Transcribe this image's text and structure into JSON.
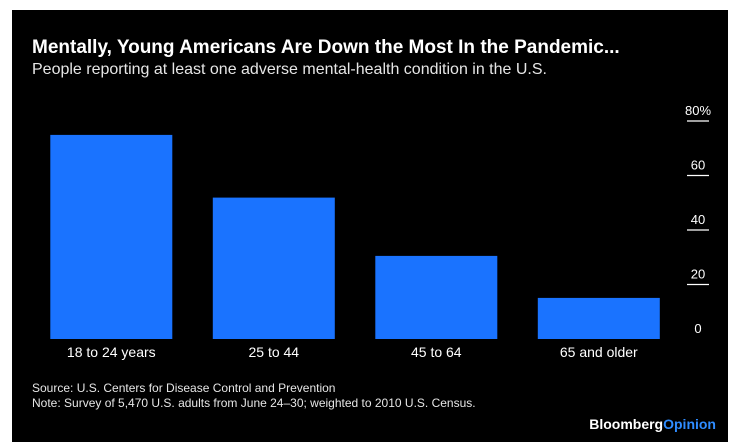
{
  "header": {
    "title": "Mentally, Young Americans Are Down the Most In the Pandemic...",
    "subtitle": "People reporting at least one adverse mental-health condition in the U.S."
  },
  "footer": {
    "source": "Source: U.S. Centers for Disease Control and Prevention",
    "note": "Note: Survey of 5,470 U.S. adults from June 24–30; weighted to 2010 U.S. Census.",
    "brand_part1": "Bloomberg",
    "brand_part2": "Opinion"
  },
  "colors": {
    "bar": "#1a73ff",
    "background": "#000000",
    "text": "#ffffff",
    "brand_accent": "#2f8cff"
  },
  "chart_data": {
    "type": "bar",
    "categories": [
      "18 to 24 years",
      "25 to 44",
      "45 to 64",
      "65 and older"
    ],
    "values": [
      74.9,
      51.9,
      30.5,
      15.1
    ],
    "ylim": [
      0,
      80
    ],
    "y_ticks": [
      0,
      20,
      40,
      60,
      80
    ],
    "y_tick_labels": [
      "0",
      "20",
      "40",
      "60",
      "80%"
    ],
    "y_axis_position": "right",
    "grid": false,
    "xlabel": "",
    "ylabel": ""
  }
}
